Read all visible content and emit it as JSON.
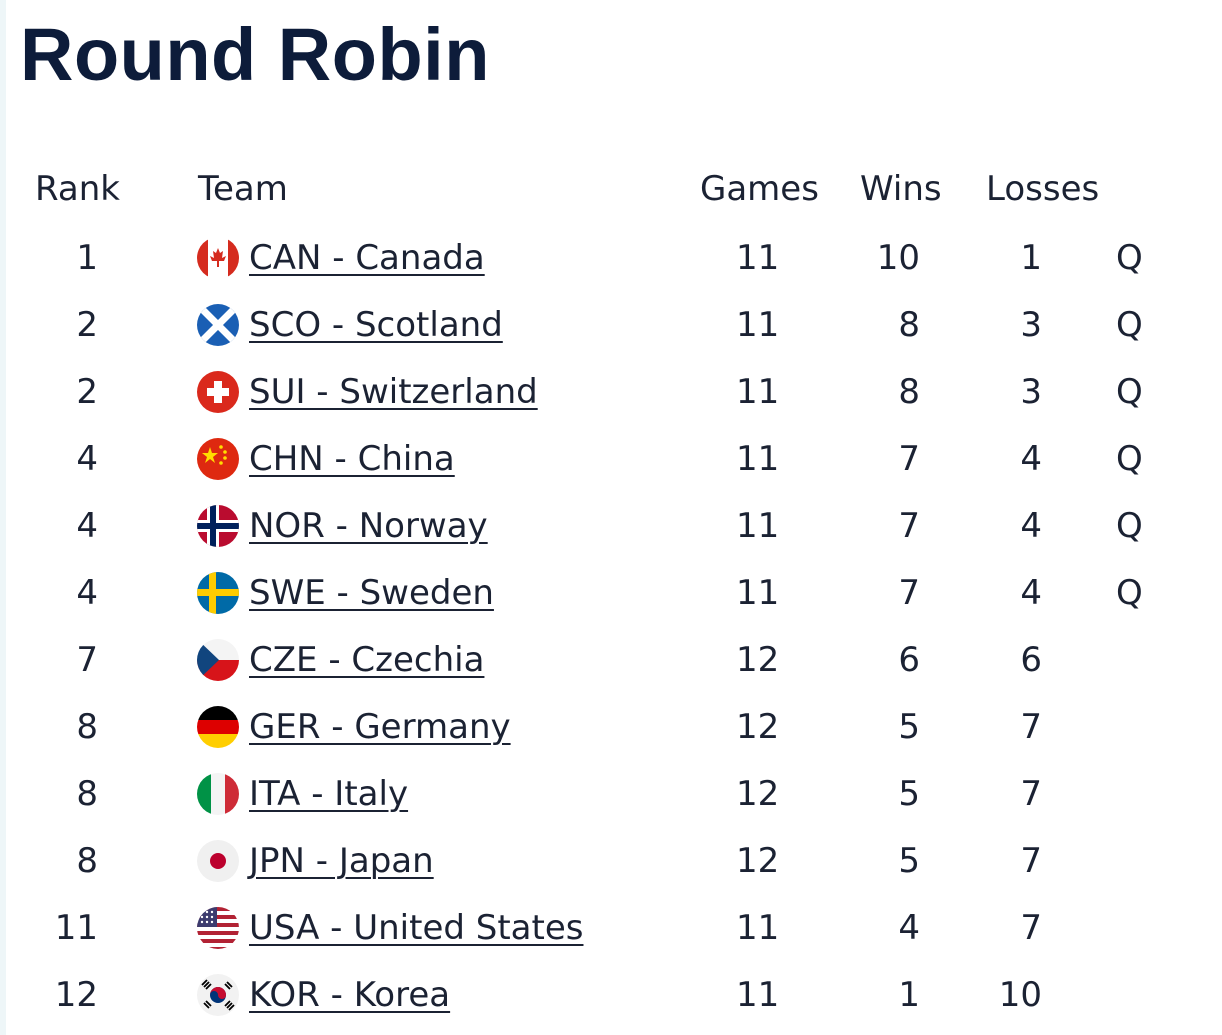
{
  "page": {
    "title": "Round Robin"
  },
  "table": {
    "headers": {
      "rank": "Rank",
      "team": "Team",
      "games": "Games",
      "wins": "Wins",
      "losses": "Losses"
    },
    "rows": [
      {
        "rank": "1",
        "team": "CAN - Canada",
        "flag": "canada-flag-icon",
        "games": "11",
        "wins": "10",
        "losses": "1",
        "status": "Q"
      },
      {
        "rank": "2",
        "team": "SCO - Scotland",
        "flag": "scotland-flag-icon",
        "games": "11",
        "wins": "8",
        "losses": "3",
        "status": "Q"
      },
      {
        "rank": "2",
        "team": "SUI - Switzerland",
        "flag": "switzerland-flag-icon",
        "games": "11",
        "wins": "8",
        "losses": "3",
        "status": "Q"
      },
      {
        "rank": "4",
        "team": "CHN - China",
        "flag": "china-flag-icon",
        "games": "11",
        "wins": "7",
        "losses": "4",
        "status": "Q"
      },
      {
        "rank": "4",
        "team": "NOR - Norway",
        "flag": "norway-flag-icon",
        "games": "11",
        "wins": "7",
        "losses": "4",
        "status": "Q"
      },
      {
        "rank": "4",
        "team": "SWE - Sweden",
        "flag": "sweden-flag-icon",
        "games": "11",
        "wins": "7",
        "losses": "4",
        "status": "Q"
      },
      {
        "rank": "7",
        "team": "CZE - Czechia",
        "flag": "czechia-flag-icon",
        "games": "12",
        "wins": "6",
        "losses": "6",
        "status": ""
      },
      {
        "rank": "8",
        "team": "GER - Germany",
        "flag": "germany-flag-icon",
        "games": "12",
        "wins": "5",
        "losses": "7",
        "status": ""
      },
      {
        "rank": "8",
        "team": "ITA - Italy",
        "flag": "italy-flag-icon",
        "games": "12",
        "wins": "5",
        "losses": "7",
        "status": ""
      },
      {
        "rank": "8",
        "team": "JPN - Japan",
        "flag": "japan-flag-icon",
        "games": "12",
        "wins": "5",
        "losses": "7",
        "status": ""
      },
      {
        "rank": "11",
        "team": "USA - United States",
        "flag": "usa-flag-icon",
        "games": "11",
        "wins": "4",
        "losses": "7",
        "status": ""
      },
      {
        "rank": "12",
        "team": "KOR - Korea",
        "flag": "korea-flag-icon",
        "games": "11",
        "wins": "1",
        "losses": "10",
        "status": ""
      }
    ]
  },
  "colors": {
    "title": "#0d1c3a",
    "text": "#1b2233"
  }
}
